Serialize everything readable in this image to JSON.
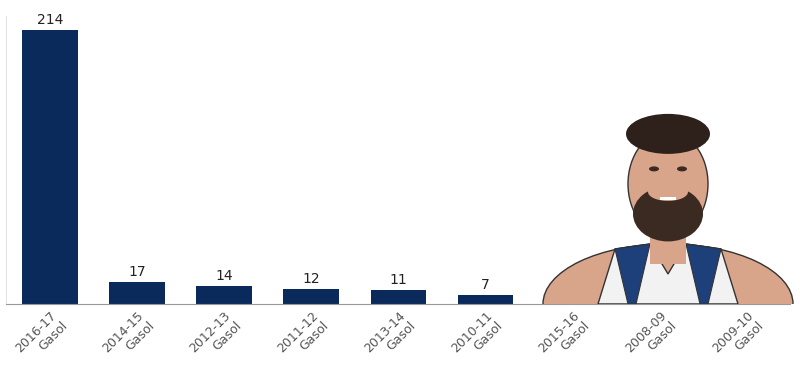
{
  "chart_data": {
    "type": "bar",
    "categories": [
      "2016-17\nGasol",
      "2014-15\nGasol",
      "2012-13\nGasol",
      "2011-12\nGasol",
      "2013-14\nGasol",
      "2010-11\nGasol",
      "2015-16\nGasol",
      "2008-09\nGasol",
      "2009-10\nGasol"
    ],
    "values": [
      214,
      17,
      14,
      12,
      11,
      7,
      null,
      null,
      null
    ],
    "color": "#0b2a5c",
    "ylim": [
      0,
      225
    ],
    "yticks": [],
    "data_labels": true,
    "grid": false,
    "tick_labels": "x"
  }
}
